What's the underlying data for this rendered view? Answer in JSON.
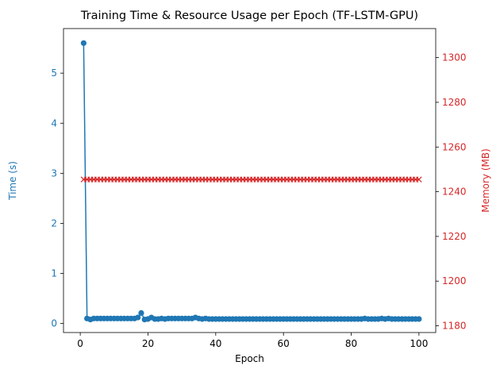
{
  "chart_data": {
    "type": "line",
    "title": "Training Time & Resource Usage per Epoch (TF-LSTM-GPU)",
    "xlabel": "Epoch",
    "xlim": [
      -4.95,
      104.95
    ],
    "xticks": [
      0,
      20,
      40,
      60,
      80,
      100
    ],
    "grid": false,
    "legend": "none",
    "axes": {
      "left": {
        "label": "Time (s)",
        "color": "#1f77b4",
        "ylim": [
          -0.18,
          5.89
        ],
        "ticks": [
          0,
          1,
          2,
          3,
          4,
          5
        ]
      },
      "right": {
        "label": "Memory (MB)",
        "color": "#d62728",
        "ylim": [
          1177,
          1313
        ],
        "ticks": [
          1180,
          1200,
          1220,
          1240,
          1260,
          1280,
          1300
        ]
      }
    },
    "series": [
      {
        "axis": "left",
        "marker": "circle",
        "color": "#1f77b4",
        "x": [
          1,
          2,
          3,
          4,
          5,
          6,
          7,
          8,
          9,
          10,
          11,
          12,
          13,
          14,
          15,
          16,
          17,
          18,
          19,
          20,
          21,
          22,
          23,
          24,
          25,
          26,
          27,
          28,
          29,
          30,
          31,
          32,
          33,
          34,
          35,
          36,
          37,
          38,
          39,
          40,
          41,
          42,
          43,
          44,
          45,
          46,
          47,
          48,
          49,
          50,
          51,
          52,
          53,
          54,
          55,
          56,
          57,
          58,
          59,
          60,
          61,
          62,
          63,
          64,
          65,
          66,
          67,
          68,
          69,
          70,
          71,
          72,
          73,
          74,
          75,
          76,
          77,
          78,
          79,
          80,
          81,
          82,
          83,
          84,
          85,
          86,
          87,
          88,
          89,
          90,
          91,
          92,
          93,
          94,
          95,
          96,
          97,
          98,
          99,
          100
        ],
        "values": [
          5.6,
          0.1,
          0.08,
          0.1,
          0.1,
          0.1,
          0.1,
          0.1,
          0.1,
          0.1,
          0.1,
          0.1,
          0.1,
          0.1,
          0.1,
          0.1,
          0.12,
          0.21,
          0.08,
          0.09,
          0.12,
          0.09,
          0.09,
          0.1,
          0.09,
          0.1,
          0.1,
          0.1,
          0.1,
          0.1,
          0.1,
          0.1,
          0.1,
          0.12,
          0.1,
          0.09,
          0.1,
          0.09,
          0.09,
          0.09,
          0.09,
          0.09,
          0.09,
          0.09,
          0.09,
          0.09,
          0.09,
          0.09,
          0.09,
          0.09,
          0.09,
          0.09,
          0.09,
          0.09,
          0.09,
          0.09,
          0.09,
          0.09,
          0.09,
          0.09,
          0.09,
          0.09,
          0.09,
          0.09,
          0.09,
          0.09,
          0.09,
          0.09,
          0.09,
          0.09,
          0.09,
          0.09,
          0.09,
          0.09,
          0.09,
          0.09,
          0.09,
          0.09,
          0.09,
          0.09,
          0.09,
          0.09,
          0.09,
          0.1,
          0.09,
          0.09,
          0.09,
          0.09,
          0.1,
          0.09,
          0.1,
          0.09,
          0.09,
          0.09,
          0.09,
          0.09,
          0.09,
          0.09,
          0.09,
          0.09
        ]
      },
      {
        "axis": "right",
        "marker": "x",
        "color": "#d62728",
        "x": [
          1,
          2,
          3,
          4,
          5,
          6,
          7,
          8,
          9,
          10,
          11,
          12,
          13,
          14,
          15,
          16,
          17,
          18,
          19,
          20,
          21,
          22,
          23,
          24,
          25,
          26,
          27,
          28,
          29,
          30,
          31,
          32,
          33,
          34,
          35,
          36,
          37,
          38,
          39,
          40,
          41,
          42,
          43,
          44,
          45,
          46,
          47,
          48,
          49,
          50,
          51,
          52,
          53,
          54,
          55,
          56,
          57,
          58,
          59,
          60,
          61,
          62,
          63,
          64,
          65,
          66,
          67,
          68,
          69,
          70,
          71,
          72,
          73,
          74,
          75,
          76,
          77,
          78,
          79,
          80,
          81,
          82,
          83,
          84,
          85,
          86,
          87,
          88,
          89,
          90,
          91,
          92,
          93,
          94,
          95,
          96,
          97,
          98,
          99,
          100
        ],
        "values": [
          1245.5,
          1245.5,
          1245.5,
          1245.5,
          1245.5,
          1245.5,
          1245.5,
          1245.5,
          1245.5,
          1245.5,
          1245.5,
          1245.5,
          1245.5,
          1245.5,
          1245.5,
          1245.5,
          1245.5,
          1245.5,
          1245.5,
          1245.5,
          1245.5,
          1245.5,
          1245.5,
          1245.5,
          1245.5,
          1245.5,
          1245.5,
          1245.5,
          1245.5,
          1245.5,
          1245.5,
          1245.5,
          1245.5,
          1245.5,
          1245.5,
          1245.5,
          1245.5,
          1245.5,
          1245.5,
          1245.5,
          1245.5,
          1245.5,
          1245.5,
          1245.5,
          1245.5,
          1245.5,
          1245.5,
          1245.5,
          1245.5,
          1245.5,
          1245.5,
          1245.5,
          1245.5,
          1245.5,
          1245.5,
          1245.5,
          1245.5,
          1245.5,
          1245.5,
          1245.5,
          1245.5,
          1245.5,
          1245.5,
          1245.5,
          1245.5,
          1245.5,
          1245.5,
          1245.5,
          1245.5,
          1245.5,
          1245.5,
          1245.5,
          1245.5,
          1245.5,
          1245.5,
          1245.5,
          1245.5,
          1245.5,
          1245.5,
          1245.5,
          1245.5,
          1245.5,
          1245.5,
          1245.5,
          1245.5,
          1245.5,
          1245.5,
          1245.5,
          1245.5,
          1245.5,
          1245.5,
          1245.5,
          1245.5,
          1245.5,
          1245.5,
          1245.5,
          1245.5,
          1245.5,
          1245.5,
          1245.5
        ]
      }
    ]
  }
}
